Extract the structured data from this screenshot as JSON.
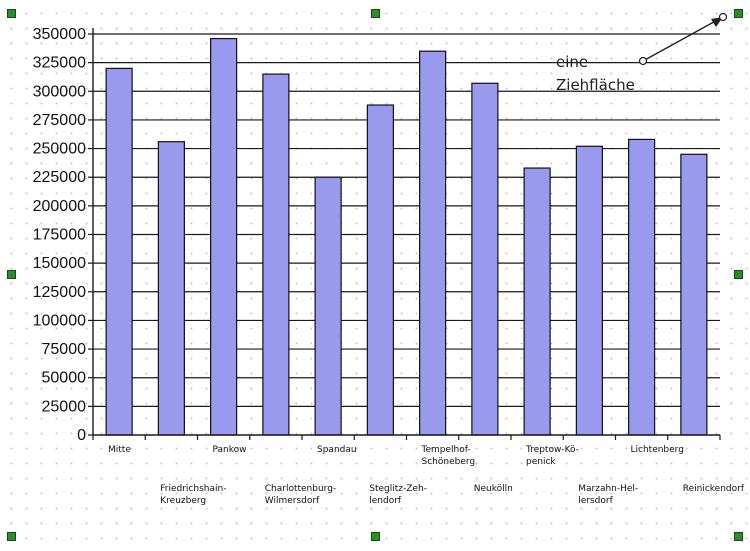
{
  "chart_data": {
    "type": "bar",
    "title": "",
    "xlabel": "",
    "ylabel": "",
    "ylim": [
      0,
      350000
    ],
    "ytick_step": 25000,
    "grid": true,
    "bar_color": "#9999ee",
    "categories": [
      [
        "Mitte"
      ],
      [
        "Friedrichshain-",
        "Kreuzberg"
      ],
      [
        "Pankow"
      ],
      [
        "Charlottenburg-",
        "Wilmersdorf"
      ],
      [
        "Spandau"
      ],
      [
        "Steglitz-Zeh-",
        "lendorf"
      ],
      [
        "Tempelhof-",
        "Schöneberg"
      ],
      [
        "Neukölln"
      ],
      [
        "Treptow-Kö-",
        "penick"
      ],
      [
        "Marzahn-Hel-",
        "lersdorf"
      ],
      [
        "Lichtenberg"
      ],
      [
        "Reinickendorf"
      ]
    ],
    "values": [
      320000,
      256000,
      346000,
      315000,
      225000,
      288000,
      335000,
      307000,
      233000,
      252000,
      258000,
      245000
    ],
    "annotation": {
      "lines": [
        "eine",
        "Ziehfläche"
      ]
    }
  },
  "handle_color": "#2e8b2e"
}
